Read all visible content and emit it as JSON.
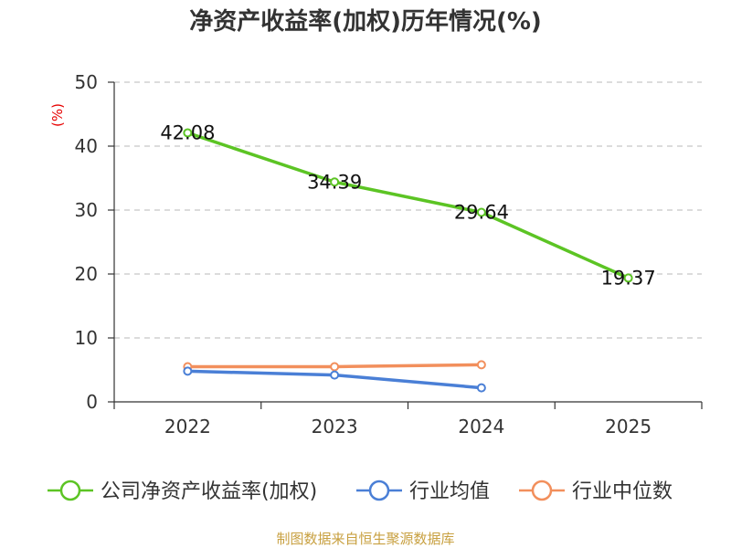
{
  "chart_data": {
    "type": "line",
    "title": "净资产收益率(加权)历年情况(%)",
    "ylabel": "(%)",
    "xlabel": "",
    "categories": [
      "2022",
      "2023",
      "2024",
      "2025"
    ],
    "ylim": [
      0,
      50
    ],
    "yticks": [
      0,
      10,
      20,
      30,
      40,
      50
    ],
    "grid": true,
    "legend_position": "bottom",
    "series": [
      {
        "name": "公司净资产收益率(加权)",
        "color": "#5cc424",
        "values": [
          42.08,
          34.39,
          29.64,
          19.37
        ],
        "labels": [
          "42.08",
          "34.39",
          "29.64",
          "19.37"
        ]
      },
      {
        "name": "行业均值",
        "color": "#4a7fd6",
        "values": [
          4.8,
          4.2,
          2.2,
          null
        ]
      },
      {
        "name": "行业中位数",
        "color": "#f28f5c",
        "values": [
          5.5,
          5.5,
          5.8,
          null
        ]
      }
    ]
  },
  "source": "制图数据来自恒生聚源数据库"
}
